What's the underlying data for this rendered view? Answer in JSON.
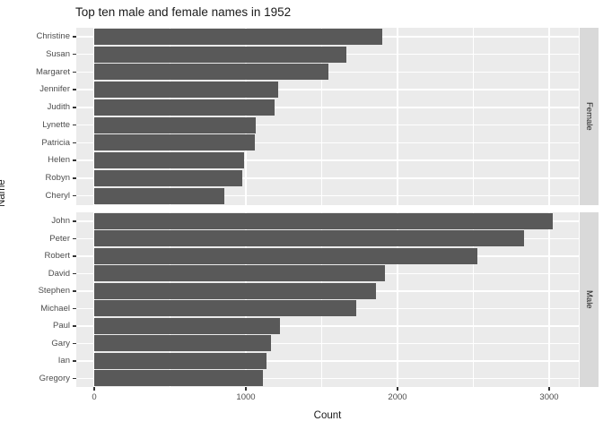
{
  "title": "Top ten male and female names in 1952",
  "chart_data": {
    "type": "bar",
    "orientation": "horizontal",
    "title": "Top ten male and female names in 1952",
    "xlabel": "Count",
    "ylabel": "Name",
    "xlim": [
      0,
      3200
    ],
    "x_ticks": [
      0,
      1000,
      2000,
      3000
    ],
    "x_tick_labels": [
      "0",
      "1000",
      "2000",
      "3000"
    ],
    "x_minor_ticks": [
      500,
      1500,
      2500
    ],
    "grid": "on",
    "legend": "none",
    "facet_strip_position": "right",
    "facets": [
      {
        "label": "Female",
        "categories": [
          "Christine",
          "Susan",
          "Margaret",
          "Jennifer",
          "Judith",
          "Lynette",
          "Patricia",
          "Helen",
          "Robyn",
          "Cheryl"
        ],
        "values": [
          1900,
          1660,
          1545,
          1215,
          1190,
          1065,
          1060,
          990,
          975,
          860
        ]
      },
      {
        "label": "Male",
        "categories": [
          "John",
          "Peter",
          "Robert",
          "David",
          "Stephen",
          "Michael",
          "Paul",
          "Gary",
          "Ian",
          "Gregory"
        ],
        "values": [
          3025,
          2835,
          2525,
          1915,
          1860,
          1730,
          1225,
          1165,
          1135,
          1110
        ]
      }
    ],
    "colors": {
      "bar": "#595959",
      "panel_background": "#EBEBEB",
      "strip_background": "#D9D9D9",
      "gridline": "#FFFFFF",
      "axis_text": "#4d4d4d",
      "title_text": "#1a1a1a"
    }
  }
}
